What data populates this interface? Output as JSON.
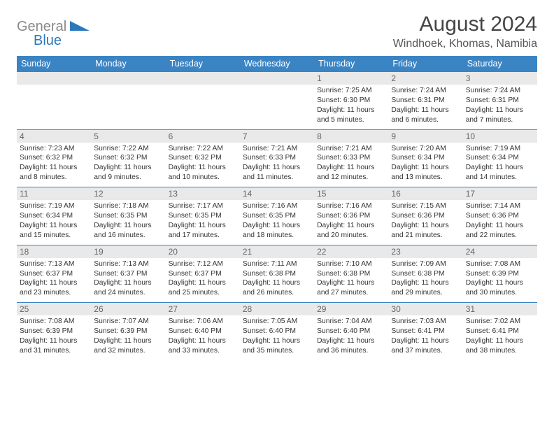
{
  "logo": {
    "text_general": "General",
    "text_blue": "Blue",
    "accent": "#2b78bd",
    "gray": "#87898b"
  },
  "header": {
    "month_title": "August 2024",
    "location": "Windhoek, Khomas, Namibia"
  },
  "colors": {
    "dow_bg": "#3b84c4",
    "daynum_bg": "#e9e9e9",
    "week_border": "#3b84c4"
  },
  "days_of_week": [
    "Sunday",
    "Monday",
    "Tuesday",
    "Wednesday",
    "Thursday",
    "Friday",
    "Saturday"
  ],
  "weeks": [
    [
      {
        "n": "",
        "sr": "",
        "ss": "",
        "dl": ""
      },
      {
        "n": "",
        "sr": "",
        "ss": "",
        "dl": ""
      },
      {
        "n": "",
        "sr": "",
        "ss": "",
        "dl": ""
      },
      {
        "n": "",
        "sr": "",
        "ss": "",
        "dl": ""
      },
      {
        "n": "1",
        "sr": "Sunrise: 7:25 AM",
        "ss": "Sunset: 6:30 PM",
        "dl": "Daylight: 11 hours and 5 minutes."
      },
      {
        "n": "2",
        "sr": "Sunrise: 7:24 AM",
        "ss": "Sunset: 6:31 PM",
        "dl": "Daylight: 11 hours and 6 minutes."
      },
      {
        "n": "3",
        "sr": "Sunrise: 7:24 AM",
        "ss": "Sunset: 6:31 PM",
        "dl": "Daylight: 11 hours and 7 minutes."
      }
    ],
    [
      {
        "n": "4",
        "sr": "Sunrise: 7:23 AM",
        "ss": "Sunset: 6:32 PM",
        "dl": "Daylight: 11 hours and 8 minutes."
      },
      {
        "n": "5",
        "sr": "Sunrise: 7:22 AM",
        "ss": "Sunset: 6:32 PM",
        "dl": "Daylight: 11 hours and 9 minutes."
      },
      {
        "n": "6",
        "sr": "Sunrise: 7:22 AM",
        "ss": "Sunset: 6:32 PM",
        "dl": "Daylight: 11 hours and 10 minutes."
      },
      {
        "n": "7",
        "sr": "Sunrise: 7:21 AM",
        "ss": "Sunset: 6:33 PM",
        "dl": "Daylight: 11 hours and 11 minutes."
      },
      {
        "n": "8",
        "sr": "Sunrise: 7:21 AM",
        "ss": "Sunset: 6:33 PM",
        "dl": "Daylight: 11 hours and 12 minutes."
      },
      {
        "n": "9",
        "sr": "Sunrise: 7:20 AM",
        "ss": "Sunset: 6:34 PM",
        "dl": "Daylight: 11 hours and 13 minutes."
      },
      {
        "n": "10",
        "sr": "Sunrise: 7:19 AM",
        "ss": "Sunset: 6:34 PM",
        "dl": "Daylight: 11 hours and 14 minutes."
      }
    ],
    [
      {
        "n": "11",
        "sr": "Sunrise: 7:19 AM",
        "ss": "Sunset: 6:34 PM",
        "dl": "Daylight: 11 hours and 15 minutes."
      },
      {
        "n": "12",
        "sr": "Sunrise: 7:18 AM",
        "ss": "Sunset: 6:35 PM",
        "dl": "Daylight: 11 hours and 16 minutes."
      },
      {
        "n": "13",
        "sr": "Sunrise: 7:17 AM",
        "ss": "Sunset: 6:35 PM",
        "dl": "Daylight: 11 hours and 17 minutes."
      },
      {
        "n": "14",
        "sr": "Sunrise: 7:16 AM",
        "ss": "Sunset: 6:35 PM",
        "dl": "Daylight: 11 hours and 18 minutes."
      },
      {
        "n": "15",
        "sr": "Sunrise: 7:16 AM",
        "ss": "Sunset: 6:36 PM",
        "dl": "Daylight: 11 hours and 20 minutes."
      },
      {
        "n": "16",
        "sr": "Sunrise: 7:15 AM",
        "ss": "Sunset: 6:36 PM",
        "dl": "Daylight: 11 hours and 21 minutes."
      },
      {
        "n": "17",
        "sr": "Sunrise: 7:14 AM",
        "ss": "Sunset: 6:36 PM",
        "dl": "Daylight: 11 hours and 22 minutes."
      }
    ],
    [
      {
        "n": "18",
        "sr": "Sunrise: 7:13 AM",
        "ss": "Sunset: 6:37 PM",
        "dl": "Daylight: 11 hours and 23 minutes."
      },
      {
        "n": "19",
        "sr": "Sunrise: 7:13 AM",
        "ss": "Sunset: 6:37 PM",
        "dl": "Daylight: 11 hours and 24 minutes."
      },
      {
        "n": "20",
        "sr": "Sunrise: 7:12 AM",
        "ss": "Sunset: 6:37 PM",
        "dl": "Daylight: 11 hours and 25 minutes."
      },
      {
        "n": "21",
        "sr": "Sunrise: 7:11 AM",
        "ss": "Sunset: 6:38 PM",
        "dl": "Daylight: 11 hours and 26 minutes."
      },
      {
        "n": "22",
        "sr": "Sunrise: 7:10 AM",
        "ss": "Sunset: 6:38 PM",
        "dl": "Daylight: 11 hours and 27 minutes."
      },
      {
        "n": "23",
        "sr": "Sunrise: 7:09 AM",
        "ss": "Sunset: 6:38 PM",
        "dl": "Daylight: 11 hours and 29 minutes."
      },
      {
        "n": "24",
        "sr": "Sunrise: 7:08 AM",
        "ss": "Sunset: 6:39 PM",
        "dl": "Daylight: 11 hours and 30 minutes."
      }
    ],
    [
      {
        "n": "25",
        "sr": "Sunrise: 7:08 AM",
        "ss": "Sunset: 6:39 PM",
        "dl": "Daylight: 11 hours and 31 minutes."
      },
      {
        "n": "26",
        "sr": "Sunrise: 7:07 AM",
        "ss": "Sunset: 6:39 PM",
        "dl": "Daylight: 11 hours and 32 minutes."
      },
      {
        "n": "27",
        "sr": "Sunrise: 7:06 AM",
        "ss": "Sunset: 6:40 PM",
        "dl": "Daylight: 11 hours and 33 minutes."
      },
      {
        "n": "28",
        "sr": "Sunrise: 7:05 AM",
        "ss": "Sunset: 6:40 PM",
        "dl": "Daylight: 11 hours and 35 minutes."
      },
      {
        "n": "29",
        "sr": "Sunrise: 7:04 AM",
        "ss": "Sunset: 6:40 PM",
        "dl": "Daylight: 11 hours and 36 minutes."
      },
      {
        "n": "30",
        "sr": "Sunrise: 7:03 AM",
        "ss": "Sunset: 6:41 PM",
        "dl": "Daylight: 11 hours and 37 minutes."
      },
      {
        "n": "31",
        "sr": "Sunrise: 7:02 AM",
        "ss": "Sunset: 6:41 PM",
        "dl": "Daylight: 11 hours and 38 minutes."
      }
    ]
  ]
}
